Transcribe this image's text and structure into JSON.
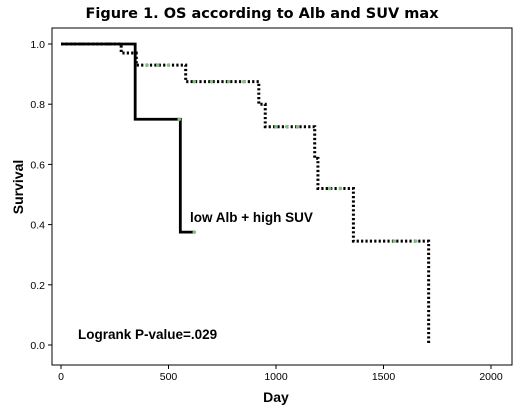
{
  "chart_data": {
    "type": "line",
    "title": "Figure 1. OS according to Alb and SUV max",
    "xlabel": "Day",
    "ylabel": "Survival",
    "xlim": [
      0,
      2000
    ],
    "ylim": [
      0,
      1.0
    ],
    "xticks": [
      "0",
      "500",
      "1000",
      "1500",
      "2000"
    ],
    "yticks": [
      "0.0",
      "0.2",
      "0.4",
      "0.6",
      "0.8",
      "1.0"
    ],
    "grid": false,
    "series": [
      {
        "name": "low Alb + high SUV",
        "style": "solid",
        "color": "#000000",
        "steps": [
          [
            0,
            1.0
          ],
          [
            345,
            0.75
          ],
          [
            555,
            0.375
          ]
        ],
        "end_x": 620,
        "censored": [
          [
            550,
            0.75
          ],
          [
            620,
            0.375
          ]
        ]
      },
      {
        "name": "",
        "style": "dotted",
        "color": "#000000",
        "steps": [
          [
            0,
            1.0
          ],
          [
            280,
            0.97
          ],
          [
            350,
            0.93
          ],
          [
            580,
            0.875
          ],
          [
            920,
            0.8
          ],
          [
            950,
            0.725
          ],
          [
            1180,
            0.62
          ],
          [
            1195,
            0.52
          ],
          [
            1360,
            0.345
          ],
          [
            1710,
            0.0
          ]
        ],
        "end_x": 1710,
        "censored": [
          [
            50,
            1.0
          ],
          [
            100,
            1.0
          ],
          [
            150,
            1.0
          ],
          [
            220,
            1.0
          ],
          [
            400,
            0.93
          ],
          [
            450,
            0.93
          ],
          [
            500,
            0.93
          ],
          [
            620,
            0.875
          ],
          [
            700,
            0.875
          ],
          [
            780,
            0.875
          ],
          [
            850,
            0.875
          ],
          [
            1000,
            0.725
          ],
          [
            1050,
            0.725
          ],
          [
            1100,
            0.725
          ],
          [
            1250,
            0.52
          ],
          [
            1300,
            0.52
          ],
          [
            1550,
            0.345
          ],
          [
            1650,
            0.345
          ]
        ]
      }
    ],
    "annotations": [
      {
        "text": "low Alb + high SUV"
      },
      {
        "text": "Logrank P-value=.029"
      }
    ]
  }
}
